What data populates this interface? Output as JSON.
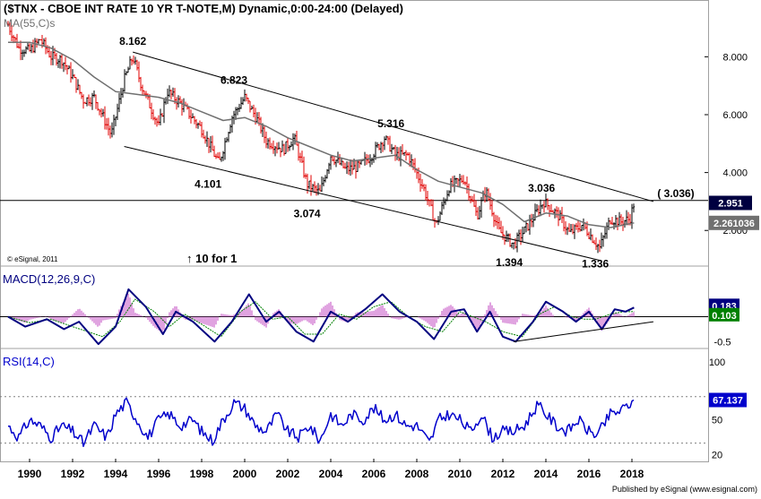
{
  "chart_data": {
    "type": "line",
    "title": "($TNX - CBOE INT RATE 10 YR T-NOTE,M) Dynamic,0:00-24:00 (Delayed)",
    "copyright": "© eSignal, 2011",
    "footer": "Published by eSignal (www.esignal.com)",
    "x_tick_labels": [
      "1990",
      "1992",
      "1994",
      "1996",
      "1998",
      "2000",
      "2002",
      "2004",
      "2006",
      "2008",
      "2010",
      "2012",
      "2014",
      "2016",
      "2018"
    ],
    "colors": {
      "up_bar": "#000000",
      "down_bar": "#e00000",
      "ma": "#707070",
      "macd": "#000080",
      "signal": "#008000",
      "histogram": "#cc66cc",
      "rsi": "#0000cc",
      "trendline": "#000000"
    },
    "price_panel": {
      "ma_label": "MA(55,C)s",
      "ylim": [
        0.8,
        9.9
      ],
      "y_ticks": [
        {
          "value": 2.0,
          "label": "2.000"
        },
        {
          "value": 4.0,
          "label": "4.000"
        },
        {
          "value": 6.0,
          "label": "6.000"
        },
        {
          "value": 8.0,
          "label": "8.000"
        }
      ],
      "last_price": {
        "value": 2.951,
        "label": "2.951"
      },
      "ma_last": {
        "value": 2.261036,
        "label": "2.261036"
      },
      "close_series": [
        [
          1989.0,
          9.1
        ],
        [
          1989.5,
          8.3
        ],
        [
          1990.0,
          8.2
        ],
        [
          1990.5,
          8.6
        ],
        [
          1991.0,
          8.0
        ],
        [
          1991.5,
          7.9
        ],
        [
          1992.0,
          7.3
        ],
        [
          1992.5,
          6.5
        ],
        [
          1993.0,
          6.6
        ],
        [
          1993.8,
          5.3
        ],
        [
          1994.4,
          7.2
        ],
        [
          1994.8,
          8.0
        ],
        [
          1995.2,
          7.0
        ],
        [
          1996.0,
          5.6
        ],
        [
          1996.4,
          6.8
        ],
        [
          1997.0,
          6.4
        ],
        [
          1998.0,
          5.5
        ],
        [
          1998.8,
          4.3
        ],
        [
          1999.4,
          5.9
        ],
        [
          2000.0,
          6.6
        ],
        [
          2000.6,
          5.8
        ],
        [
          2001.0,
          5.1
        ],
        [
          2001.8,
          4.8
        ],
        [
          2002.3,
          5.2
        ],
        [
          2002.9,
          3.6
        ],
        [
          2003.5,
          3.3
        ],
        [
          2004.0,
          4.6
        ],
        [
          2004.7,
          4.1
        ],
        [
          2005.3,
          4.2
        ],
        [
          2005.9,
          4.6
        ],
        [
          2006.5,
          5.2
        ],
        [
          2007.0,
          4.6
        ],
        [
          2007.6,
          4.6
        ],
        [
          2008.3,
          3.5
        ],
        [
          2008.9,
          2.2
        ],
        [
          2009.5,
          3.5
        ],
        [
          2010.2,
          3.8
        ],
        [
          2010.8,
          2.5
        ],
        [
          2011.2,
          3.4
        ],
        [
          2011.8,
          2.0
        ],
        [
          2012.5,
          1.5
        ],
        [
          2013.2,
          2.2
        ],
        [
          2013.9,
          3.0
        ],
        [
          2014.6,
          2.5
        ],
        [
          2015.1,
          1.9
        ],
        [
          2015.7,
          2.2
        ],
        [
          2016.5,
          1.4
        ],
        [
          2017.0,
          2.4
        ],
        [
          2017.5,
          2.3
        ],
        [
          2017.9,
          2.4
        ],
        [
          2018.1,
          2.95
        ]
      ],
      "ma_series": [
        [
          1989.0,
          8.5
        ],
        [
          1990.0,
          8.5
        ],
        [
          1991.0,
          8.3
        ],
        [
          1992.0,
          7.9
        ],
        [
          1993.0,
          7.3
        ],
        [
          1994.0,
          6.8
        ],
        [
          1995.0,
          6.7
        ],
        [
          1996.0,
          6.6
        ],
        [
          1997.0,
          6.4
        ],
        [
          1998.0,
          6.1
        ],
        [
          1999.0,
          5.8
        ],
        [
          2000.0,
          5.9
        ],
        [
          2001.0,
          5.6
        ],
        [
          2002.0,
          5.2
        ],
        [
          2003.0,
          4.9
        ],
        [
          2004.0,
          4.6
        ],
        [
          2005.0,
          4.4
        ],
        [
          2006.0,
          4.5
        ],
        [
          2007.0,
          4.6
        ],
        [
          2008.0,
          4.1
        ],
        [
          2009.0,
          3.7
        ],
        [
          2010.0,
          3.5
        ],
        [
          2011.0,
          3.3
        ],
        [
          2012.0,
          2.9
        ],
        [
          2013.0,
          2.3
        ],
        [
          2014.0,
          2.6
        ],
        [
          2015.0,
          2.5
        ],
        [
          2016.0,
          2.2
        ],
        [
          2017.0,
          2.1
        ],
        [
          2018.1,
          2.26
        ]
      ],
      "annotations": [
        {
          "text": "8.162",
          "x": 1994.8,
          "y": 8.162
        },
        {
          "text": "6.823",
          "x": 1999.5,
          "y": 6.823
        },
        {
          "text": "5.316",
          "x": 2006.8,
          "y": 5.316
        },
        {
          "text": "3.036",
          "x": 2013.8,
          "y": 3.036
        },
        {
          "text": "4.101",
          "x": 1998.3,
          "y": 4.101
        },
        {
          "text": "3.074",
          "x": 2002.9,
          "y": 3.074
        },
        {
          "text": "1.394",
          "x": 2012.3,
          "y": 1.394
        },
        {
          "text": "1.336",
          "x": 2016.3,
          "y": 1.336
        },
        {
          "text": "( 3.036)",
          "x": 2019.0,
          "y": 3.036
        },
        {
          "text": "↑ 10 for 1",
          "x": 1997.4,
          "y": 0.0
        }
      ],
      "trendlines": [
        {
          "from": [
            1994.8,
            8.162
          ],
          "to": [
            2019.0,
            3.0
          ]
        },
        {
          "from": [
            1994.4,
            4.9
          ],
          "to": [
            2016.6,
            0.95
          ]
        }
      ],
      "hline": 3.036
    },
    "macd_panel": {
      "label": "MACD(12,26,9,C)",
      "ylim": [
        -0.62,
        0.98
      ],
      "y_ticks": [
        {
          "value": 0.0,
          "label": "0"
        },
        {
          "value": -0.5,
          "label": "-0.5"
        }
      ],
      "last_values": [
        {
          "value": 0.183,
          "label": "0.183",
          "color": "#000080"
        },
        {
          "value": 0.103,
          "label": "0.103",
          "color": "#008000"
        }
      ],
      "macd_series": [
        [
          1989.0,
          0.0
        ],
        [
          1989.8,
          -0.2
        ],
        [
          1990.8,
          -0.05
        ],
        [
          1991.6,
          -0.25
        ],
        [
          1992.3,
          -0.1
        ],
        [
          1993.2,
          -0.55
        ],
        [
          1994.0,
          -0.2
        ],
        [
          1994.6,
          0.55
        ],
        [
          1995.4,
          0.2
        ],
        [
          1996.2,
          -0.35
        ],
        [
          1996.8,
          0.1
        ],
        [
          1997.6,
          -0.1
        ],
        [
          1998.6,
          -0.5
        ],
        [
          1999.4,
          -0.1
        ],
        [
          2000.2,
          0.45
        ],
        [
          2001.0,
          -0.1
        ],
        [
          2001.6,
          0.1
        ],
        [
          2002.4,
          -0.3
        ],
        [
          2003.2,
          -0.5
        ],
        [
          2004.0,
          0.1
        ],
        [
          2004.8,
          -0.1
        ],
        [
          2005.6,
          0.15
        ],
        [
          2006.4,
          0.45
        ],
        [
          2007.2,
          0.1
        ],
        [
          2008.0,
          -0.1
        ],
        [
          2008.8,
          -0.45
        ],
        [
          2009.6,
          0.1
        ],
        [
          2010.2,
          0.15
        ],
        [
          2010.8,
          -0.3
        ],
        [
          2011.4,
          0.1
        ],
        [
          2012.0,
          -0.4
        ],
        [
          2012.6,
          -0.5
        ],
        [
          2013.4,
          -0.1
        ],
        [
          2014.0,
          0.3
        ],
        [
          2014.8,
          0.1
        ],
        [
          2015.4,
          -0.1
        ],
        [
          2016.0,
          0.1
        ],
        [
          2016.6,
          -0.25
        ],
        [
          2017.2,
          0.15
        ],
        [
          2017.7,
          0.1
        ],
        [
          2018.1,
          0.183
        ]
      ],
      "signal_series": [
        [
          1989.0,
          0.0
        ],
        [
          1990.0,
          -0.12
        ],
        [
          1991.0,
          -0.05
        ],
        [
          1992.0,
          -0.2
        ],
        [
          1993.4,
          -0.4
        ],
        [
          1994.2,
          -0.1
        ],
        [
          1994.9,
          0.35
        ],
        [
          1995.8,
          0.1
        ],
        [
          1996.5,
          -0.2
        ],
        [
          1997.2,
          0.05
        ],
        [
          1998.0,
          -0.15
        ],
        [
          1998.9,
          -0.4
        ],
        [
          1999.8,
          0.1
        ],
        [
          2000.5,
          0.3
        ],
        [
          2001.3,
          -0.05
        ],
        [
          2002.0,
          0.0
        ],
        [
          2002.8,
          -0.35
        ],
        [
          2003.6,
          -0.35
        ],
        [
          2004.4,
          0.05
        ],
        [
          2005.2,
          -0.05
        ],
        [
          2006.0,
          0.2
        ],
        [
          2006.8,
          0.3
        ],
        [
          2007.6,
          0.0
        ],
        [
          2008.4,
          -0.2
        ],
        [
          2009.2,
          -0.3
        ],
        [
          2010.0,
          0.1
        ],
        [
          2010.6,
          0.0
        ],
        [
          2011.2,
          -0.1
        ],
        [
          2012.0,
          -0.3
        ],
        [
          2012.9,
          -0.4
        ],
        [
          2013.7,
          0.05
        ],
        [
          2014.4,
          0.2
        ],
        [
          2015.2,
          0.0
        ],
        [
          2015.8,
          -0.05
        ],
        [
          2016.3,
          -0.05
        ],
        [
          2017.0,
          0.05
        ],
        [
          2017.6,
          0.1
        ],
        [
          2018.1,
          0.103
        ]
      ],
      "trendline": {
        "from": [
          2012.5,
          -0.5
        ],
        "to": [
          2019.0,
          -0.1
        ]
      }
    },
    "rsi_panel": {
      "label": "RSI(14,C)",
      "ylim": [
        15,
        110
      ],
      "y_ticks": [
        {
          "value": 100,
          "label": "100"
        },
        {
          "value": 50,
          "label": "50"
        },
        {
          "value": 20,
          "label": "20"
        }
      ],
      "overbought": 70,
      "oversold": 30,
      "last_value": {
        "value": 67.137,
        "label": "67.137"
      },
      "series": [
        [
          1989.0,
          45
        ],
        [
          1989.5,
          35
        ],
        [
          1990.0,
          50
        ],
        [
          1990.5,
          45
        ],
        [
          1991.0,
          35
        ],
        [
          1991.5,
          45
        ],
        [
          1992.0,
          40
        ],
        [
          1992.5,
          30
        ],
        [
          1993.0,
          45
        ],
        [
          1993.6,
          35
        ],
        [
          1994.0,
          55
        ],
        [
          1994.5,
          65
        ],
        [
          1995.0,
          50
        ],
        [
          1995.5,
          35
        ],
        [
          1996.0,
          50
        ],
        [
          1996.5,
          55
        ],
        [
          1997.0,
          45
        ],
        [
          1997.6,
          50
        ],
        [
          1998.0,
          40
        ],
        [
          1998.5,
          32
        ],
        [
          1999.0,
          50
        ],
        [
          1999.5,
          65
        ],
        [
          2000.0,
          60
        ],
        [
          2000.5,
          45
        ],
        [
          2001.0,
          40
        ],
        [
          2001.5,
          55
        ],
        [
          2002.0,
          40
        ],
        [
          2002.5,
          35
        ],
        [
          2003.0,
          45
        ],
        [
          2003.5,
          32
        ],
        [
          2004.0,
          55
        ],
        [
          2004.5,
          45
        ],
        [
          2005.0,
          55
        ],
        [
          2005.5,
          50
        ],
        [
          2006.0,
          60
        ],
        [
          2006.5,
          50
        ],
        [
          2007.0,
          55
        ],
        [
          2007.5,
          45
        ],
        [
          2008.0,
          45
        ],
        [
          2008.6,
          30
        ],
        [
          2009.0,
          50
        ],
        [
          2009.5,
          55
        ],
        [
          2010.0,
          50
        ],
        [
          2010.5,
          40
        ],
        [
          2011.0,
          55
        ],
        [
          2011.5,
          35
        ],
        [
          2012.0,
          40
        ],
        [
          2012.5,
          40
        ],
        [
          2013.0,
          45
        ],
        [
          2013.6,
          63
        ],
        [
          2014.0,
          55
        ],
        [
          2014.5,
          45
        ],
        [
          2015.0,
          40
        ],
        [
          2015.5,
          50
        ],
        [
          2016.0,
          40
        ],
        [
          2016.4,
          37
        ],
        [
          2017.0,
          55
        ],
        [
          2017.5,
          58
        ],
        [
          2018.1,
          67.137
        ]
      ]
    }
  }
}
